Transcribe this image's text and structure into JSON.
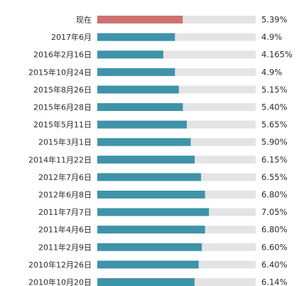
{
  "chart_data": {
    "type": "bar",
    "orientation": "horizontal",
    "title": "",
    "xlabel": "",
    "ylabel": "",
    "xlim": [
      0,
      10
    ],
    "grid": false,
    "legend": "none",
    "categories": [
      "现在",
      "2017年6月",
      "2016年2月16日",
      "2015年10月24日",
      "2015年8月26日",
      "2015年6月28日",
      "2015年5月11日",
      "2015年3月1日",
      "2014年11月22日",
      "2012年7月6日",
      "2012年6月8日",
      "2011年7月7日",
      "2011年4月6日",
      "2011年2月9日",
      "2010年12月26日",
      "2010年10月20日"
    ],
    "values": [
      5.39,
      4.9,
      4.165,
      4.9,
      5.15,
      5.4,
      5.65,
      5.9,
      6.15,
      6.55,
      6.8,
      7.05,
      6.8,
      6.6,
      6.4,
      6.14
    ],
    "value_labels": [
      "5.39%",
      "4.9%",
      "4.165%",
      "4.9%",
      "5.15%",
      "5.40%",
      "5.65%",
      "5.90%",
      "6.15%",
      "6.55%",
      "6.80%",
      "7.05%",
      "6.80%",
      "6.60%",
      "6.40%",
      "6.14%"
    ],
    "colors": {
      "highlight": "#d07070",
      "bar": "#3f93a8",
      "track": "#e4e4e4"
    }
  }
}
